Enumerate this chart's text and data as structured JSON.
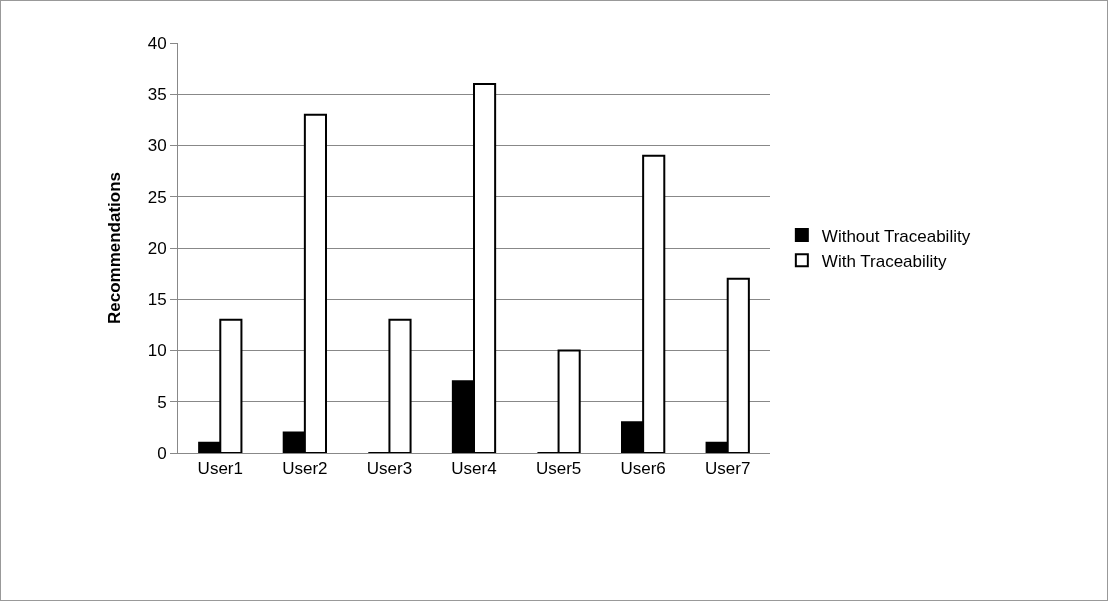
{
  "chart_data": {
    "type": "bar",
    "ylabel": "Recommendations",
    "categories": [
      "User1",
      "User2",
      "User3",
      "User4",
      "User5",
      "User6",
      "User7"
    ],
    "series": [
      {
        "name": "Without Traceability",
        "color": "#000000",
        "values": [
          1,
          2,
          0,
          7,
          0,
          3,
          1
        ]
      },
      {
        "name": "With Traceability",
        "color": "#ffffff",
        "values": [
          13,
          33,
          13,
          36,
          10,
          29,
          17
        ]
      }
    ],
    "ylim": [
      0,
      40
    ],
    "yticks": [
      0,
      5,
      10,
      15,
      20,
      25,
      30,
      35,
      40
    ],
    "grid": "y",
    "legend": "right"
  }
}
